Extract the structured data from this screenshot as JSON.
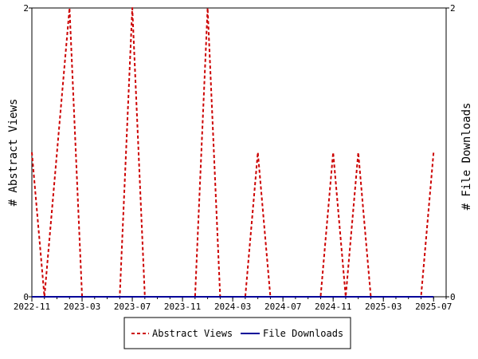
{
  "chart_data": {
    "type": "line",
    "x_type": "month",
    "x": [
      "2022-11",
      "2022-12",
      "2023-01",
      "2023-02",
      "2023-03",
      "2023-04",
      "2023-05",
      "2023-06",
      "2023-07",
      "2023-08",
      "2023-09",
      "2023-10",
      "2023-11",
      "2023-12",
      "2024-01",
      "2024-02",
      "2024-03",
      "2024-04",
      "2024-05",
      "2024-06",
      "2024-07",
      "2024-08",
      "2024-09",
      "2024-10",
      "2024-11",
      "2024-12",
      "2025-01",
      "2025-02",
      "2025-03",
      "2025-04",
      "2025-05",
      "2025-06",
      "2025-07",
      "2025-08"
    ],
    "x_tick_labels": [
      "2022-11",
      "2023-03",
      "2023-07",
      "2023-11",
      "2024-03",
      "2024-07",
      "2024-11",
      "2025-03",
      "2025-07"
    ],
    "series": [
      {
        "name": "Abstract Views",
        "axis": "left",
        "color": "#cc0000",
        "dash": "dashed",
        "values": [
          1,
          0,
          1,
          2,
          0,
          0,
          0,
          0,
          2,
          0,
          0,
          0,
          0,
          0,
          2,
          0,
          0,
          0,
          1,
          0,
          0,
          0,
          0,
          0,
          1,
          0,
          1,
          0,
          0,
          0,
          0,
          0,
          1,
          null
        ]
      },
      {
        "name": "File Downloads",
        "axis": "right",
        "color": "#000099",
        "dash": "solid",
        "values": [
          0,
          0,
          0,
          0,
          0,
          0,
          0,
          0,
          0,
          0,
          0,
          0,
          0,
          0,
          0,
          0,
          0,
          0,
          0,
          0,
          0,
          0,
          0,
          0,
          0,
          0,
          0,
          0,
          0,
          0,
          0,
          0,
          0,
          null
        ]
      }
    ],
    "ylabel_left": "# Abstract Views",
    "ylabel_right": "# File Downloads",
    "ylim_left": [
      0,
      2
    ],
    "ylim_right": [
      0,
      2
    ],
    "y_ticks_left": [
      "0",
      "2"
    ],
    "y_ticks_right": [
      "0",
      "2"
    ],
    "grid": false,
    "legend_position": "bottom-center"
  },
  "colors": {
    "abstract_views": "#cc0000",
    "file_downloads": "#000099",
    "axis": "#000000",
    "background": "#ffffff"
  }
}
